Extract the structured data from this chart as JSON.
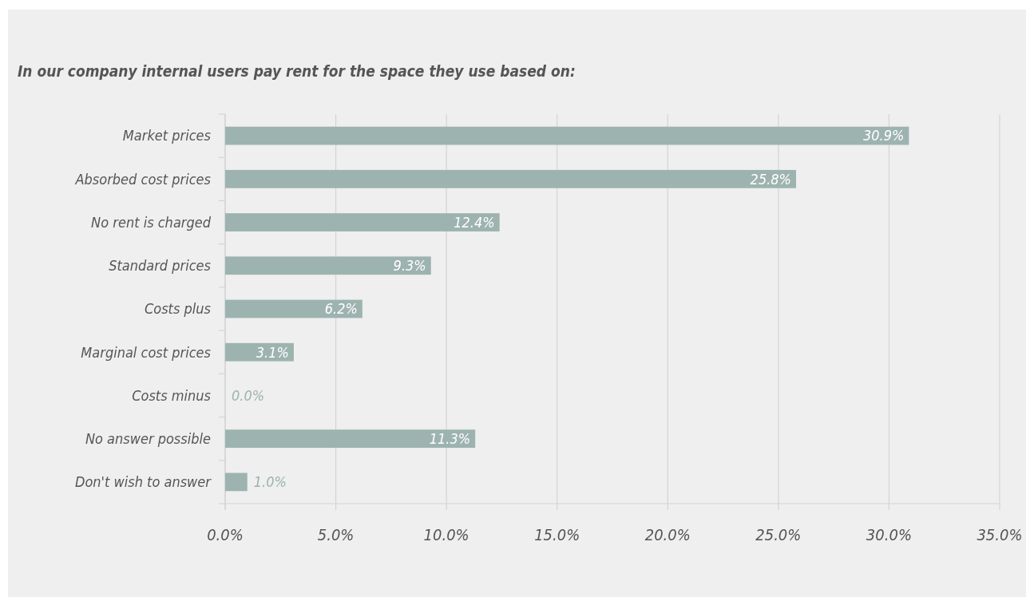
{
  "chart_data": {
    "type": "bar",
    "orientation": "horizontal",
    "title": "In our company internal users pay rent for the space they use based on:",
    "categories": [
      "Market prices",
      "Absorbed cost prices",
      "No rent is charged",
      "Standard prices",
      "Costs plus",
      "Marginal cost prices",
      "Costs minus",
      "No answer possible",
      "Don't wish to answer"
    ],
    "values": [
      30.9,
      25.8,
      12.4,
      9.3,
      6.2,
      3.1,
      0.0,
      11.3,
      1.0
    ],
    "value_labels": [
      "30.9%",
      "25.8%",
      "12.4%",
      "9.3%",
      "6.2%",
      "3.1%",
      "0.0%",
      "11.3%",
      "1.0%"
    ],
    "color": "#9db3af",
    "xlim": [
      0,
      35
    ],
    "xticks": [
      {
        "value": 0,
        "label": "0.0%"
      },
      {
        "value": 5,
        "label": "5.0%"
      },
      {
        "value": 10,
        "label": "10.0%"
      },
      {
        "value": 15,
        "label": "15.0%"
      },
      {
        "value": 20,
        "label": "20.0%"
      },
      {
        "value": 25,
        "label": "25.0%"
      },
      {
        "value": 30,
        "label": "30.0%"
      },
      {
        "value": 35,
        "label": "35.0%"
      }
    ],
    "grid": "x"
  }
}
